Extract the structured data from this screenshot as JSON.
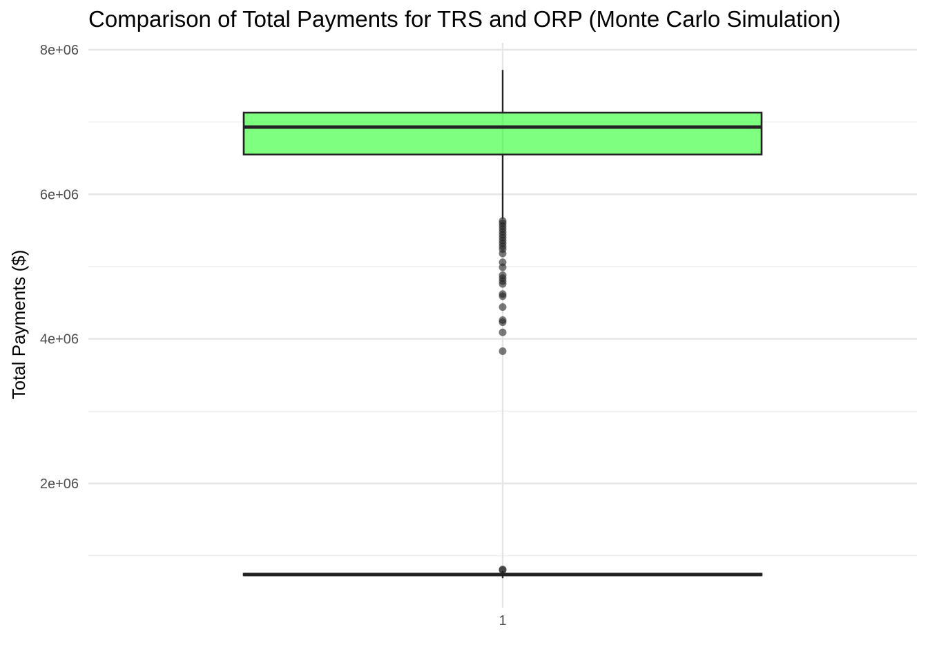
{
  "chart_data": {
    "type": "boxplot",
    "title": "Comparison of Total Payments for TRS and ORP (Monte Carlo Simulation)",
    "xlabel": "",
    "ylabel": "Total Payments ($)",
    "x_ticks": [
      "1"
    ],
    "y_ticks": [
      {
        "value": 2000000,
        "label": "2e+06"
      },
      {
        "value": 4000000,
        "label": "4e+06"
      },
      {
        "value": 6000000,
        "label": "6e+06"
      },
      {
        "value": 8000000,
        "label": "8e+06"
      }
    ],
    "y_minor_ticks": [
      1000000,
      3000000,
      5000000,
      7000000
    ],
    "ylim": [
      550000,
      8200000
    ],
    "grid": true,
    "legend": "none",
    "boxes": [
      {
        "category": "1",
        "fill": "#00ff00",
        "fill_opacity": 0.5,
        "q1": 6550000,
        "median": 6930000,
        "q3": 7130000,
        "whisker_low": 5660000,
        "whisker_high": 7720000,
        "outliers": [
          5630000,
          5600000,
          5560000,
          5520000,
          5480000,
          5440000,
          5400000,
          5360000,
          5320000,
          5280000,
          5240000,
          5180000,
          5060000,
          4990000,
          4880000,
          4840000,
          4800000,
          4760000,
          4620000,
          4590000,
          4440000,
          4260000,
          4230000,
          4090000,
          3830000
        ]
      },
      {
        "category": "1",
        "fill": "#ffffff",
        "fill_opacity": 0,
        "q1": 730000,
        "median": 740000,
        "q3": 750000,
        "whisker_low": 690000,
        "whisker_high": 790000,
        "outliers": [
          810000,
          800000
        ]
      }
    ]
  }
}
